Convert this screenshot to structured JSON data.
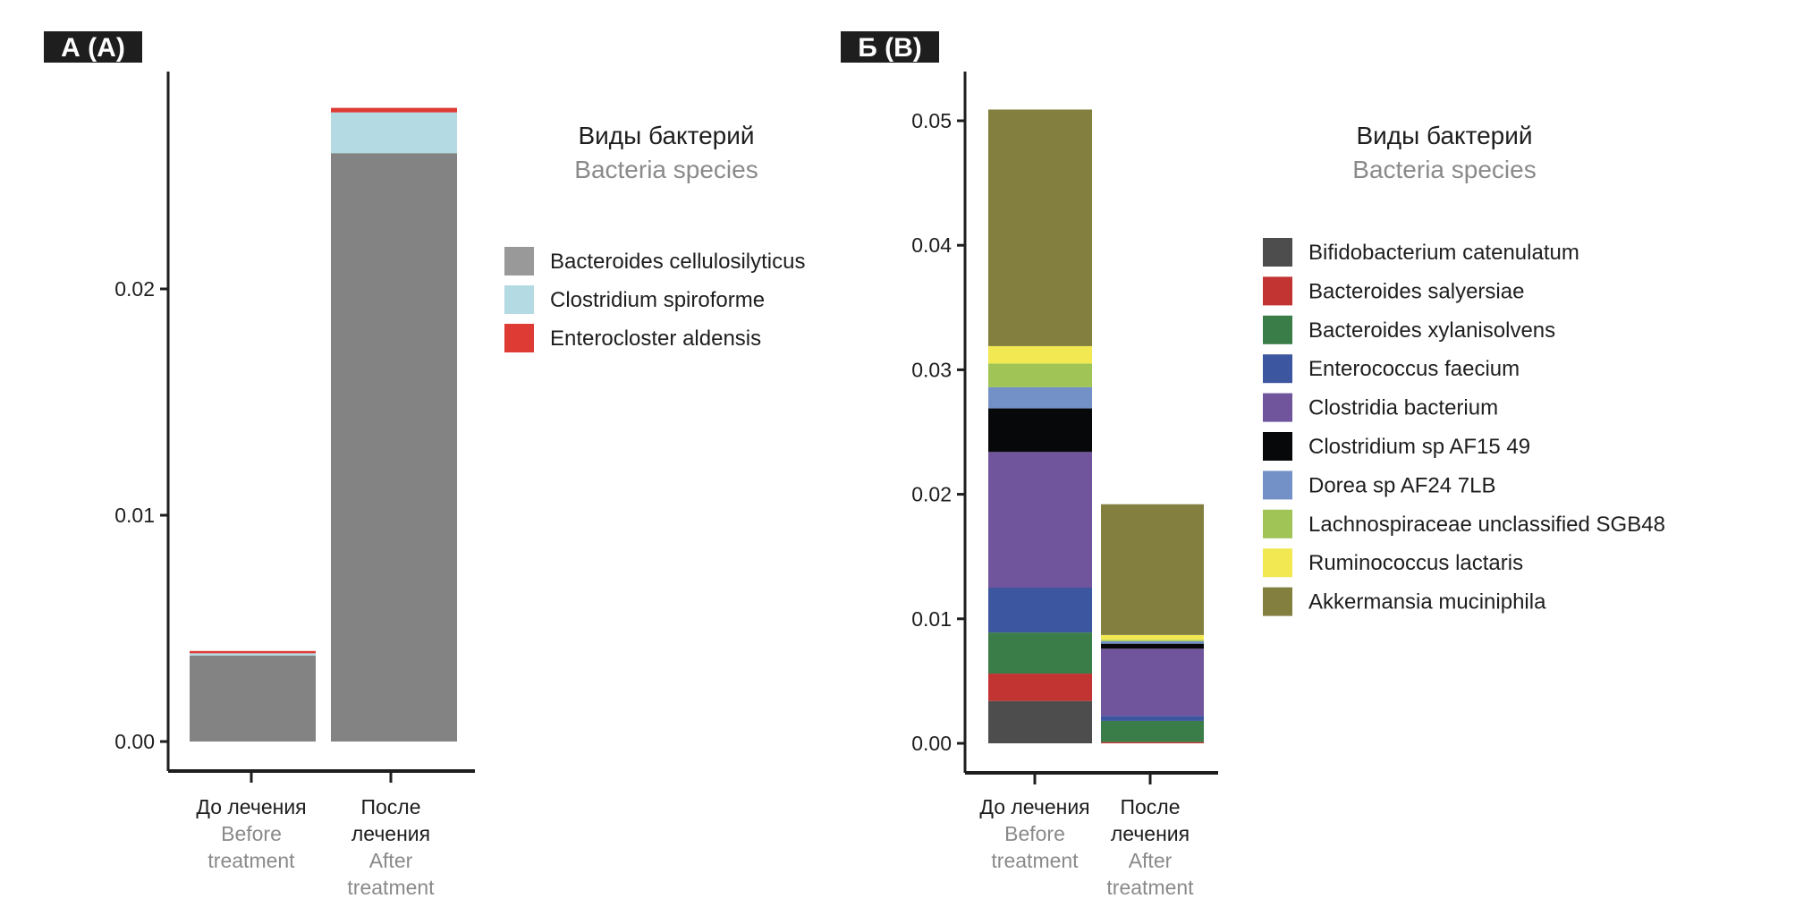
{
  "chart_data": [
    {
      "panel_label": "А (A)",
      "type": "bar",
      "stacked": true,
      "categories": [
        {
          "ru": [
            "До лечения"
          ],
          "en": [
            "Before",
            "treatment"
          ]
        },
        {
          "ru": [
            "После",
            "лечения"
          ],
          "en": [
            "After",
            "treatment"
          ]
        }
      ],
      "yticks": [
        "0.00",
        "0.01",
        "0.02"
      ],
      "ylim": [
        0,
        0.029
      ],
      "legend": {
        "title": "Виды бактерий",
        "subtitle": "Bacteria species",
        "placement": "right"
      },
      "series": [
        {
          "name": "Bacteroides cellulosilyticus",
          "color": "#828382",
          "legend_color": "#999999",
          "values": [
            0.0038,
            0.026
          ]
        },
        {
          "name": "Clostridium spiroforme",
          "color": "#b4dae4",
          "values": [
            0.0001,
            0.0018
          ]
        },
        {
          "name": "Enterocloster aldensis",
          "color": "#de3b35",
          "values": [
            0.0001,
            0.0002
          ]
        }
      ]
    },
    {
      "panel_label": "Б (B)",
      "type": "bar",
      "stacked": true,
      "categories": [
        {
          "ru": [
            "До лечения"
          ],
          "en": [
            "Before",
            "treatment"
          ]
        },
        {
          "ru": [
            "После",
            "лечения"
          ],
          "en": [
            "After",
            "treatment"
          ]
        }
      ],
      "yticks": [
        "0.00",
        "0.01",
        "0.02",
        "0.03",
        "0.04",
        "0.05"
      ],
      "ylim": [
        0,
        0.053
      ],
      "legend": {
        "title": "Виды бактерий",
        "subtitle": "Bacteria species",
        "placement": "right"
      },
      "series": [
        {
          "name": "Bifidobacterium catenulatum",
          "color": "#4d4d4d",
          "values": [
            0.0034,
            0.0
          ]
        },
        {
          "name": "Bacteroides salyersiae",
          "color": "#c23432",
          "values": [
            0.0022,
            0.0001
          ]
        },
        {
          "name": "Bacteroides xylanisolvens",
          "color": "#3b7d48",
          "values": [
            0.0033,
            0.0017
          ]
        },
        {
          "name": "Enterococcus faecium",
          "color": "#3c56a0",
          "values": [
            0.0036,
            0.0004
          ]
        },
        {
          "name": "Clostridia bacterium",
          "color": "#70559c",
          "values": [
            0.0109,
            0.0054
          ]
        },
        {
          "name": "Clostridium sp AF15 49",
          "color": "#07080a",
          "values": [
            0.0035,
            0.0004
          ]
        },
        {
          "name": "Dorea sp AF24 7LB",
          "color": "#7491c7",
          "values": [
            0.0017,
            0.0002
          ]
        },
        {
          "name": "Lachnospiraceae unclassified SGB48",
          "color": "#a0c556",
          "values": [
            0.0019,
            0.0001
          ]
        },
        {
          "name": "Ruminococcus lactaris",
          "color": "#f2e852",
          "values": [
            0.0014,
            0.0004
          ]
        },
        {
          "name": "Akkermansia muciniphila",
          "color": "#827f3f",
          "values": [
            0.019,
            0.0105
          ]
        }
      ]
    }
  ]
}
